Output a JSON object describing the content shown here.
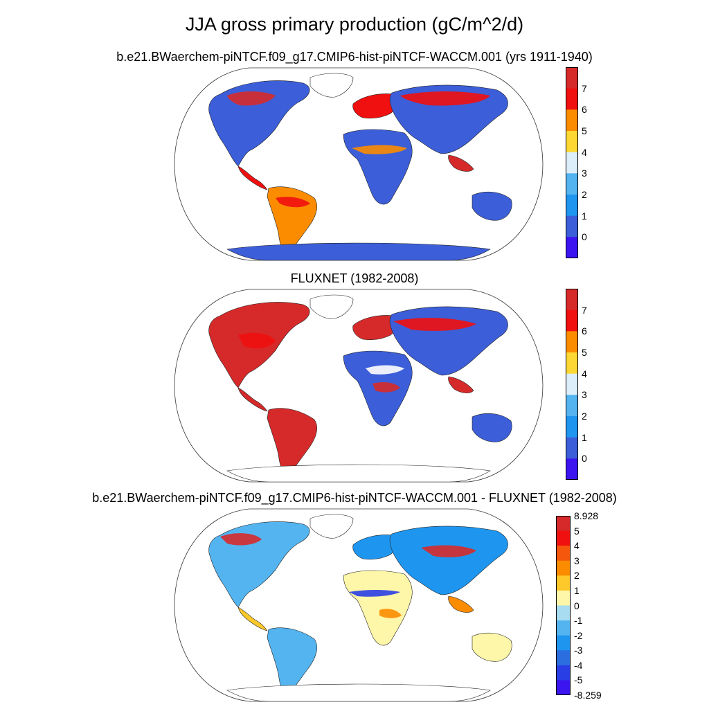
{
  "title": "JJA gross primary production (gC/m^2/d)",
  "panels": [
    {
      "subtitle": "b.e21.BWaerchem-piNTCF.f09_g17.CMIP6-hist-piNTCF-WACCM.001 (yrs 1911-1940)",
      "colorbar": {
        "labels": [
          "7",
          "6",
          "5",
          "4",
          "3",
          "2",
          "1",
          "0"
        ],
        "colors": [
          "#d62a2a",
          "#f01010",
          "#fb8c00",
          "#fdd835",
          "#dceefa",
          "#53b4f0",
          "#1e96f0",
          "#3c5ed8",
          "#3c14f0"
        ]
      }
    },
    {
      "subtitle": "FLUXNET (1982-2008)",
      "colorbar": {
        "labels": [
          "7",
          "6",
          "5",
          "4",
          "3",
          "2",
          "1",
          "0"
        ],
        "colors": [
          "#d62a2a",
          "#f01010",
          "#fb8c00",
          "#fdd835",
          "#dceefa",
          "#53b4f0",
          "#1e96f0",
          "#3c5ed8",
          "#3c14f0"
        ]
      }
    },
    {
      "subtitle": "b.e21.BWaerchem-piNTCF.f09_g17.CMIP6-hist-piNTCF-WACCM.001 - FLUXNET (1982-2008)",
      "colorbar": {
        "labels": [
          "8.928",
          "5",
          "4",
          "3",
          "2",
          "1",
          "0",
          "-1",
          "-2",
          "-3",
          "-4",
          "-5",
          "-8.259"
        ],
        "colors": [
          "#d62a2a",
          "#f01010",
          "#f5580c",
          "#fb8c00",
          "#fdc82a",
          "#fef6a8",
          "#a8dcf0",
          "#53b4f0",
          "#1e96f0",
          "#2b6ee0",
          "#2a3ee6",
          "#3c14f0"
        ]
      }
    }
  ]
}
